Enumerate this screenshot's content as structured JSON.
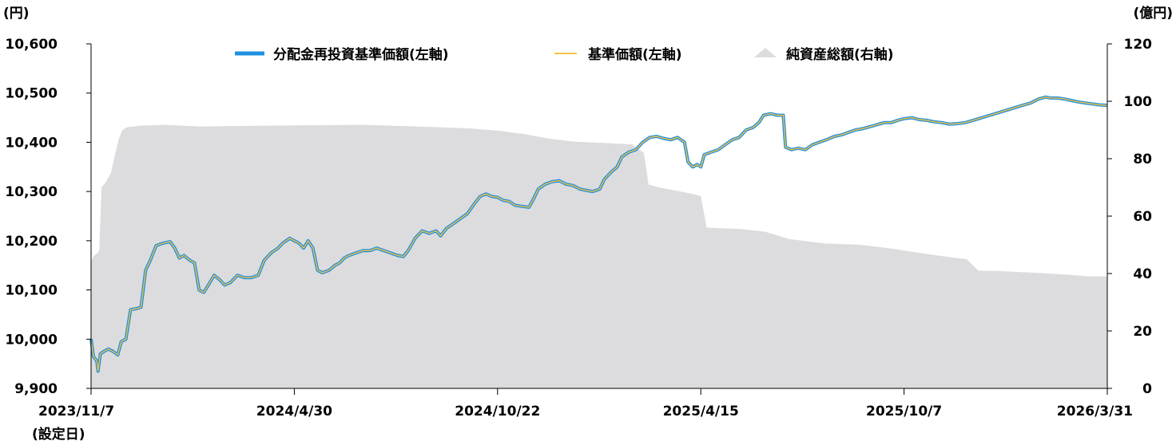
{
  "chart_data": {
    "type": "line",
    "left_unit": "(円)",
    "right_unit": "(億円)",
    "inception_note": "(設定日)",
    "left_axis": {
      "min": 9900,
      "max": 10600,
      "ticks": [
        "9,900",
        "10,000",
        "10,100",
        "10,200",
        "10,300",
        "10,400",
        "10,500",
        "10,600"
      ],
      "tick_values": [
        9900,
        10000,
        10100,
        10200,
        10300,
        10400,
        10500,
        10600
      ]
    },
    "right_axis": {
      "min": 0,
      "max": 120,
      "ticks": [
        "0",
        "20",
        "40",
        "60",
        "80",
        "100",
        "120"
      ],
      "tick_values": [
        0,
        20,
        40,
        60,
        80,
        100,
        120
      ]
    },
    "x_axis": {
      "start": "2023-11-07",
      "end": "2026-03-31",
      "tick_labels": [
        "2023/11/7",
        "2024/4/30",
        "2024/10/22",
        "2025/4/15",
        "2025/10/7",
        "2026/3/31"
      ],
      "tick_dates": [
        "2023-11-07",
        "2024-04-30",
        "2024-10-22",
        "2025-04-15",
        "2025-10-07",
        "2026-03-31"
      ]
    },
    "legend": [
      {
        "name": "分配金再投資基準価額(左軸)",
        "color": "#1E90E0",
        "kind": "line"
      },
      {
        "name": "基準価額(左軸)",
        "color": "#F5C242",
        "kind": "line"
      },
      {
        "name": "純資産総額(右軸)",
        "color": "#DCDCDE",
        "kind": "area"
      }
    ],
    "series": [
      {
        "name": "分配金再投資基準価額(左軸)",
        "axis": "left",
        "points": [
          [
            "2023-11-07",
            10000
          ],
          [
            "2023-11-09",
            9965
          ],
          [
            "2023-11-12",
            9955
          ],
          [
            "2023-11-13",
            9935
          ],
          [
            "2023-11-15",
            9970
          ],
          [
            "2023-11-18",
            9975
          ],
          [
            "2023-11-22",
            9980
          ],
          [
            "2023-11-26",
            9975
          ],
          [
            "2023-11-30",
            9968
          ],
          [
            "2023-12-03",
            9995
          ],
          [
            "2023-12-07",
            10000
          ],
          [
            "2023-12-11",
            10060
          ],
          [
            "2023-12-16",
            10062
          ],
          [
            "2023-12-20",
            10065
          ],
          [
            "2023-12-24",
            10140
          ],
          [
            "2023-12-28",
            10160
          ],
          [
            "2024-01-02",
            10190
          ],
          [
            "2024-01-08",
            10195
          ],
          [
            "2024-01-14",
            10198
          ],
          [
            "2024-01-18",
            10185
          ],
          [
            "2024-01-22",
            10165
          ],
          [
            "2024-01-26",
            10170
          ],
          [
            "2024-01-31",
            10160
          ],
          [
            "2024-02-04",
            10155
          ],
          [
            "2024-02-08",
            10100
          ],
          [
            "2024-02-12",
            10095
          ],
          [
            "2024-02-16",
            10110
          ],
          [
            "2024-02-21",
            10130
          ],
          [
            "2024-02-26",
            10120
          ],
          [
            "2024-03-01",
            10110
          ],
          [
            "2024-03-06",
            10115
          ],
          [
            "2024-03-12",
            10130
          ],
          [
            "2024-03-18",
            10125
          ],
          [
            "2024-03-24",
            10125
          ],
          [
            "2024-03-30",
            10130
          ],
          [
            "2024-04-04",
            10160
          ],
          [
            "2024-04-10",
            10175
          ],
          [
            "2024-04-16",
            10185
          ],
          [
            "2024-04-20",
            10195
          ],
          [
            "2024-04-26",
            10205
          ],
          [
            "2024-04-30",
            10200
          ],
          [
            "2024-05-04",
            10195
          ],
          [
            "2024-05-08",
            10185
          ],
          [
            "2024-05-12",
            10200
          ],
          [
            "2024-05-16",
            10185
          ],
          [
            "2024-05-20",
            10140
          ],
          [
            "2024-05-24",
            10135
          ],
          [
            "2024-05-30",
            10140
          ],
          [
            "2024-06-04",
            10150
          ],
          [
            "2024-06-08",
            10155
          ],
          [
            "2024-06-12",
            10165
          ],
          [
            "2024-06-16",
            10170
          ],
          [
            "2024-06-22",
            10175
          ],
          [
            "2024-06-28",
            10180
          ],
          [
            "2024-07-04",
            10180
          ],
          [
            "2024-07-10",
            10185
          ],
          [
            "2024-07-16",
            10180
          ],
          [
            "2024-07-22",
            10175
          ],
          [
            "2024-07-28",
            10170
          ],
          [
            "2024-08-02",
            10168
          ],
          [
            "2024-08-06",
            10180
          ],
          [
            "2024-08-12",
            10205
          ],
          [
            "2024-08-18",
            10220
          ],
          [
            "2024-08-24",
            10215
          ],
          [
            "2024-08-30",
            10220
          ],
          [
            "2024-09-03",
            10210
          ],
          [
            "2024-09-08",
            10225
          ],
          [
            "2024-09-14",
            10235
          ],
          [
            "2024-09-20",
            10245
          ],
          [
            "2024-09-26",
            10255
          ],
          [
            "2024-10-02",
            10275
          ],
          [
            "2024-10-07",
            10290
          ],
          [
            "2024-10-12",
            10295
          ],
          [
            "2024-10-17",
            10290
          ],
          [
            "2024-10-22",
            10288
          ],
          [
            "2024-10-27",
            10282
          ],
          [
            "2024-11-01",
            10280
          ],
          [
            "2024-11-06",
            10272
          ],
          [
            "2024-11-12",
            10270
          ],
          [
            "2024-11-18",
            10268
          ],
          [
            "2024-11-22",
            10285
          ],
          [
            "2024-11-26",
            10305
          ],
          [
            "2024-12-02",
            10315
          ],
          [
            "2024-12-08",
            10320
          ],
          [
            "2024-12-14",
            10322
          ],
          [
            "2024-12-20",
            10315
          ],
          [
            "2024-12-26",
            10312
          ],
          [
            "2025-01-01",
            10305
          ],
          [
            "2025-01-07",
            10302
          ],
          [
            "2025-01-12",
            10300
          ],
          [
            "2025-01-18",
            10305
          ],
          [
            "2025-01-22",
            10325
          ],
          [
            "2025-01-28",
            10340
          ],
          [
            "2025-02-02",
            10350
          ],
          [
            "2025-02-06",
            10370
          ],
          [
            "2025-02-12",
            10380
          ],
          [
            "2025-02-18",
            10385
          ],
          [
            "2025-02-24",
            10400
          ],
          [
            "2025-03-02",
            10410
          ],
          [
            "2025-03-08",
            10412
          ],
          [
            "2025-03-14",
            10408
          ],
          [
            "2025-03-20",
            10405
          ],
          [
            "2025-03-26",
            10410
          ],
          [
            "2025-04-01",
            10400
          ],
          [
            "2025-04-04",
            10360
          ],
          [
            "2025-04-08",
            10350
          ],
          [
            "2025-04-12",
            10355
          ],
          [
            "2025-04-15",
            10350
          ],
          [
            "2025-04-18",
            10375
          ],
          [
            "2025-04-24",
            10380
          ],
          [
            "2025-04-30",
            10385
          ],
          [
            "2025-05-06",
            10395
          ],
          [
            "2025-05-12",
            10405
          ],
          [
            "2025-05-18",
            10410
          ],
          [
            "2025-05-24",
            10425
          ],
          [
            "2025-05-30",
            10430
          ],
          [
            "2025-06-04",
            10440
          ],
          [
            "2025-06-08",
            10455
          ],
          [
            "2025-06-14",
            10458
          ],
          [
            "2025-06-20",
            10455
          ],
          [
            "2025-06-25",
            10455
          ],
          [
            "2025-06-27",
            10390
          ],
          [
            "2025-07-02",
            10385
          ],
          [
            "2025-07-08",
            10388
          ],
          [
            "2025-07-14",
            10385
          ],
          [
            "2025-07-20",
            10395
          ],
          [
            "2025-07-26",
            10400
          ],
          [
            "2025-08-01",
            10405
          ],
          [
            "2025-08-08",
            10412
          ],
          [
            "2025-08-14",
            10415
          ],
          [
            "2025-08-20",
            10420
          ],
          [
            "2025-08-26",
            10425
          ],
          [
            "2025-09-02",
            10428
          ],
          [
            "2025-09-08",
            10432
          ],
          [
            "2025-09-14",
            10436
          ],
          [
            "2025-09-20",
            10440
          ],
          [
            "2025-09-26",
            10440
          ],
          [
            "2025-10-02",
            10445
          ],
          [
            "2025-10-07",
            10448
          ],
          [
            "2025-10-14",
            10450
          ],
          [
            "2025-10-20",
            10446
          ],
          [
            "2025-10-26",
            10445
          ],
          [
            "2025-11-01",
            10442
          ],
          [
            "2025-11-08",
            10440
          ],
          [
            "2025-11-15",
            10437
          ],
          [
            "2025-11-22",
            10438
          ],
          [
            "2025-11-29",
            10440
          ],
          [
            "2025-12-06",
            10445
          ],
          [
            "2025-12-13",
            10450
          ],
          [
            "2025-12-20",
            10455
          ],
          [
            "2025-12-27",
            10460
          ],
          [
            "2026-01-03",
            10465
          ],
          [
            "2026-01-10",
            10470
          ],
          [
            "2026-01-17",
            10475
          ],
          [
            "2026-01-24",
            10480
          ],
          [
            "2026-01-31",
            10488
          ],
          [
            "2026-02-06",
            10492
          ],
          [
            "2026-02-10",
            10490
          ],
          [
            "2026-02-16",
            10490
          ],
          [
            "2026-02-22",
            10488
          ],
          [
            "2026-02-28",
            10485
          ],
          [
            "2026-03-06",
            10482
          ],
          [
            "2026-03-12",
            10480
          ],
          [
            "2026-03-18",
            10478
          ],
          [
            "2026-03-24",
            10476
          ],
          [
            "2026-03-31",
            10475
          ]
        ]
      },
      {
        "name": "基準価額(左軸)",
        "axis": "left",
        "same_as": "分配金再投資基準価額(左軸)"
      },
      {
        "name": "純資産総額(右軸)",
        "axis": "right",
        "kind": "area",
        "points": [
          [
            "2023-11-07",
            44
          ],
          [
            "2023-11-09",
            46
          ],
          [
            "2023-11-12",
            47
          ],
          [
            "2023-11-14",
            48
          ],
          [
            "2023-11-16",
            70
          ],
          [
            "2023-11-20",
            72
          ],
          [
            "2023-11-24",
            75
          ],
          [
            "2023-11-28",
            82
          ],
          [
            "2023-12-01",
            87
          ],
          [
            "2023-12-04",
            90
          ],
          [
            "2023-12-08",
            91
          ],
          [
            "2023-12-20",
            91.5
          ],
          [
            "2024-01-10",
            91.8
          ],
          [
            "2024-02-10",
            91.2
          ],
          [
            "2024-03-10",
            91.4
          ],
          [
            "2024-04-30",
            91.6
          ],
          [
            "2024-06-30",
            91.8
          ],
          [
            "2024-08-30",
            91.0
          ],
          [
            "2024-09-30",
            90.5
          ],
          [
            "2024-10-22",
            89.8
          ],
          [
            "2024-11-15",
            88.5
          ],
          [
            "2024-12-05",
            87.0
          ],
          [
            "2024-12-25",
            86.0
          ],
          [
            "2025-01-20",
            85.5
          ],
          [
            "2025-02-15",
            85.0
          ],
          [
            "2025-02-25",
            82
          ],
          [
            "2025-03-01",
            71
          ],
          [
            "2025-03-10",
            70
          ],
          [
            "2025-04-05",
            68
          ],
          [
            "2025-04-15",
            67
          ],
          [
            "2025-04-20",
            56
          ],
          [
            "2025-05-20",
            55.5
          ],
          [
            "2025-06-10",
            54.5
          ],
          [
            "2025-06-30",
            52
          ],
          [
            "2025-07-31",
            50.5
          ],
          [
            "2025-08-31",
            50
          ],
          [
            "2025-09-30",
            48.5
          ],
          [
            "2025-10-15",
            47.5
          ],
          [
            "2025-11-10",
            46
          ],
          [
            "2025-11-30",
            45
          ],
          [
            "2025-12-10",
            41
          ],
          [
            "2025-12-31",
            40.8
          ],
          [
            "2026-01-31",
            40.2
          ],
          [
            "2026-02-28",
            39.5
          ],
          [
            "2026-03-15",
            39.0
          ],
          [
            "2026-03-31",
            39.0
          ]
        ]
      }
    ]
  }
}
